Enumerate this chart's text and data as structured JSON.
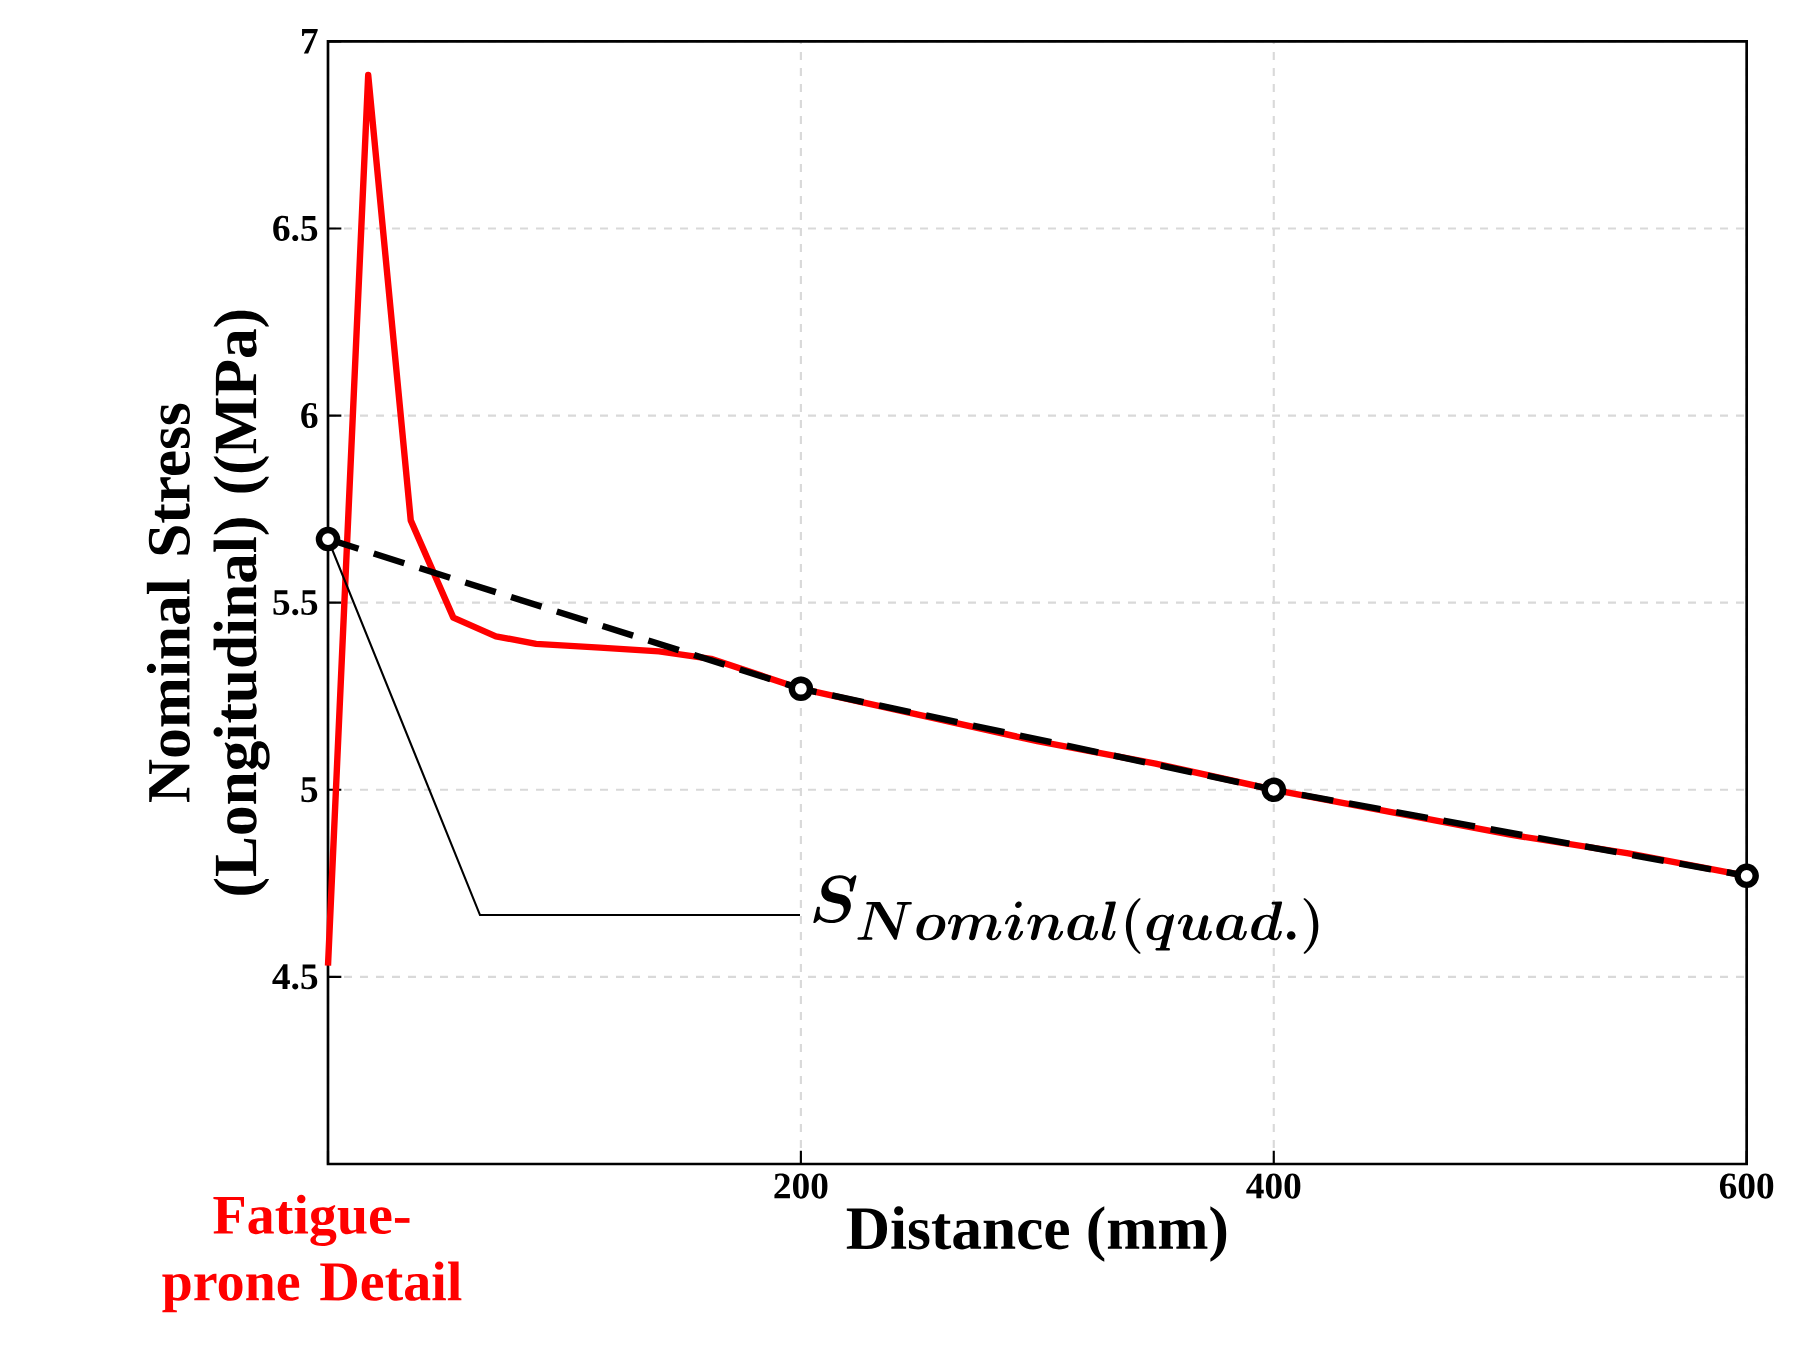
{
  "chart_data": {
    "type": "line",
    "xlabel": "Distance (mm)",
    "ylabel": "Nominal Stress (Longitudinal) ((MPa)",
    "xlim": [
      0,
      600
    ],
    "ylim": [
      4,
      7
    ],
    "xticks": [
      {
        "value": 0,
        "label": null
      },
      200,
      400,
      600
    ],
    "yticks": [
      {
        "value": 4,
        "label": null
      },
      4.5,
      5,
      5.5,
      6,
      6.5,
      7
    ],
    "grid": true,
    "legend": false,
    "series": [
      {
        "color": "#ff0000",
        "marker": "none",
        "line_style": "solid",
        "x": [
          0,
          17,
          35,
          53,
          71,
          88,
          115,
          140,
          162,
          200,
          250,
          300,
          350,
          400,
          450,
          500,
          550,
          600
        ],
        "values": [
          4.53,
          6.91,
          5.72,
          5.46,
          5.41,
          5.39,
          5.38,
          5.37,
          5.35,
          5.27,
          5.2,
          5.13,
          5.07,
          5.0,
          4.94,
          4.88,
          4.83,
          4.77
        ]
      },
      {
        "color": "#000000",
        "marker": "circle",
        "line_style": "dashed",
        "x": [
          0,
          200,
          400,
          600
        ],
        "values": [
          5.67,
          5.27,
          5.0,
          4.77
        ]
      }
    ],
    "annotations": [
      {
        "text": "S_{Nominal(quad.)}",
        "x": 0,
        "y": 5.67
      },
      {
        "text": "Fatigue-prone Detail",
        "x": 0
      }
    ]
  }
}
